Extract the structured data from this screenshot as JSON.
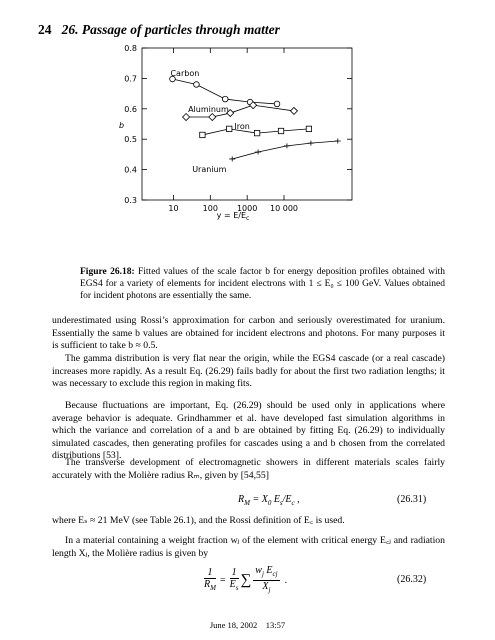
{
  "header": {
    "page": "24",
    "title": "26. Passage of particles through matter"
  },
  "chart_data": {
    "type": "line",
    "xlabel": {
      "text": "y = E/E",
      "sub": "c"
    },
    "ylabel": "b",
    "log_x": true,
    "xlim": [
      1.4,
      700000
    ],
    "ylim": [
      0.3,
      0.8
    ],
    "xticks": [
      10,
      100,
      1000,
      {
        "value": 10000,
        "label": "10 000"
      }
    ],
    "yticks": [
      0.3,
      0.4,
      0.5,
      0.6,
      0.7,
      0.8
    ],
    "color": "#000000",
    "series": [
      {
        "name": "Carbon",
        "marker": "circle",
        "x": [
          9.4,
          42,
          254,
          1200,
          6470
        ],
        "values": [
          0.698,
          0.68,
          0.632,
          0.622,
          0.616
        ]
      },
      {
        "name": "Aluminum",
        "marker": "diamond",
        "x": [
          22,
          113,
          347,
          1450,
          18600
        ],
        "values": [
          0.573,
          0.573,
          0.586,
          0.612,
          0.593
        ]
      },
      {
        "name": "Iron",
        "marker": "square",
        "x": [
          61,
          326,
          1860,
          8300,
          47400
        ],
        "values": [
          0.514,
          0.534,
          0.52,
          0.527,
          0.534
        ]
      },
      {
        "name": "Uranium",
        "marker": "cross",
        "x": [
          393,
          1980,
          12000,
          53700,
          288000
        ],
        "values": [
          0.435,
          0.458,
          0.478,
          0.487,
          0.494
        ]
      }
    ]
  },
  "caption": {
    "label": "Figure 26.18:",
    "text": "Fitted values of the scale factor b for energy deposition profiles obtained with EGS4 for a variety of elements for incident electrons with 1 ≤ E₀ ≤ 100 GeV. Values obtained for incident photons are essentially the same."
  },
  "paragraphs": [
    "underestimated using Rossi’s approximation for carbon and seriously overestimated for uranium. Essentially the same b values are obtained for incident electrons and photons. For many purposes it is sufficient to take b ≈ 0.5.",
    "The gamma distribution is very flat near the origin, while the EGS4 cascade (or a real cascade) increases more rapidly. As a result Eq. (26.29) fails badly for about the first two radiation lengths; it was necessary to exclude this region in making fits.",
    "Because fluctuations are important, Eq. (26.29) should be used only in applications where average behavior is adequate. Grindhammer et al. have developed fast simulation algorithms in which the variance and correlation of a and b are obtained by fitting Eq. (26.29) to individually simulated cascades, then generating profiles for cascades using a and b chosen from the correlated distributions [53].",
    "The transverse development of electromagnetic showers in different materials scales fairly accurately with the Molière radius Rₘ, given by [54,55]",
    "where Eₛ ≈ 21 MeV (see Table 26.1), and the Rossi definition of E꜀ is used.",
    "In a material containing a weight fraction wⱼ of the element with critical energy E꜀ⱼ and radiation length Xⱼ, the Molière radius is given by"
  ],
  "equations": [
    {
      "parts": [
        "R",
        "M",
        " = X",
        "0",
        " E",
        "s",
        "/E",
        "c",
        " ,"
      ],
      "number": "(26.31)"
    },
    {
      "lhs_num": "1",
      "lhs_den": [
        "R",
        "M"
      ],
      "eq": "=",
      "mid_num": "1",
      "mid_den": [
        "E",
        "s"
      ],
      "sum": "∑",
      "rhs_num": [
        "w",
        "j",
        " E",
        "cj"
      ],
      "rhs_den": [
        "X",
        "j"
      ],
      "end": ".",
      "number": "(26.32)"
    }
  ],
  "footer": "June 18, 2002    13:57"
}
